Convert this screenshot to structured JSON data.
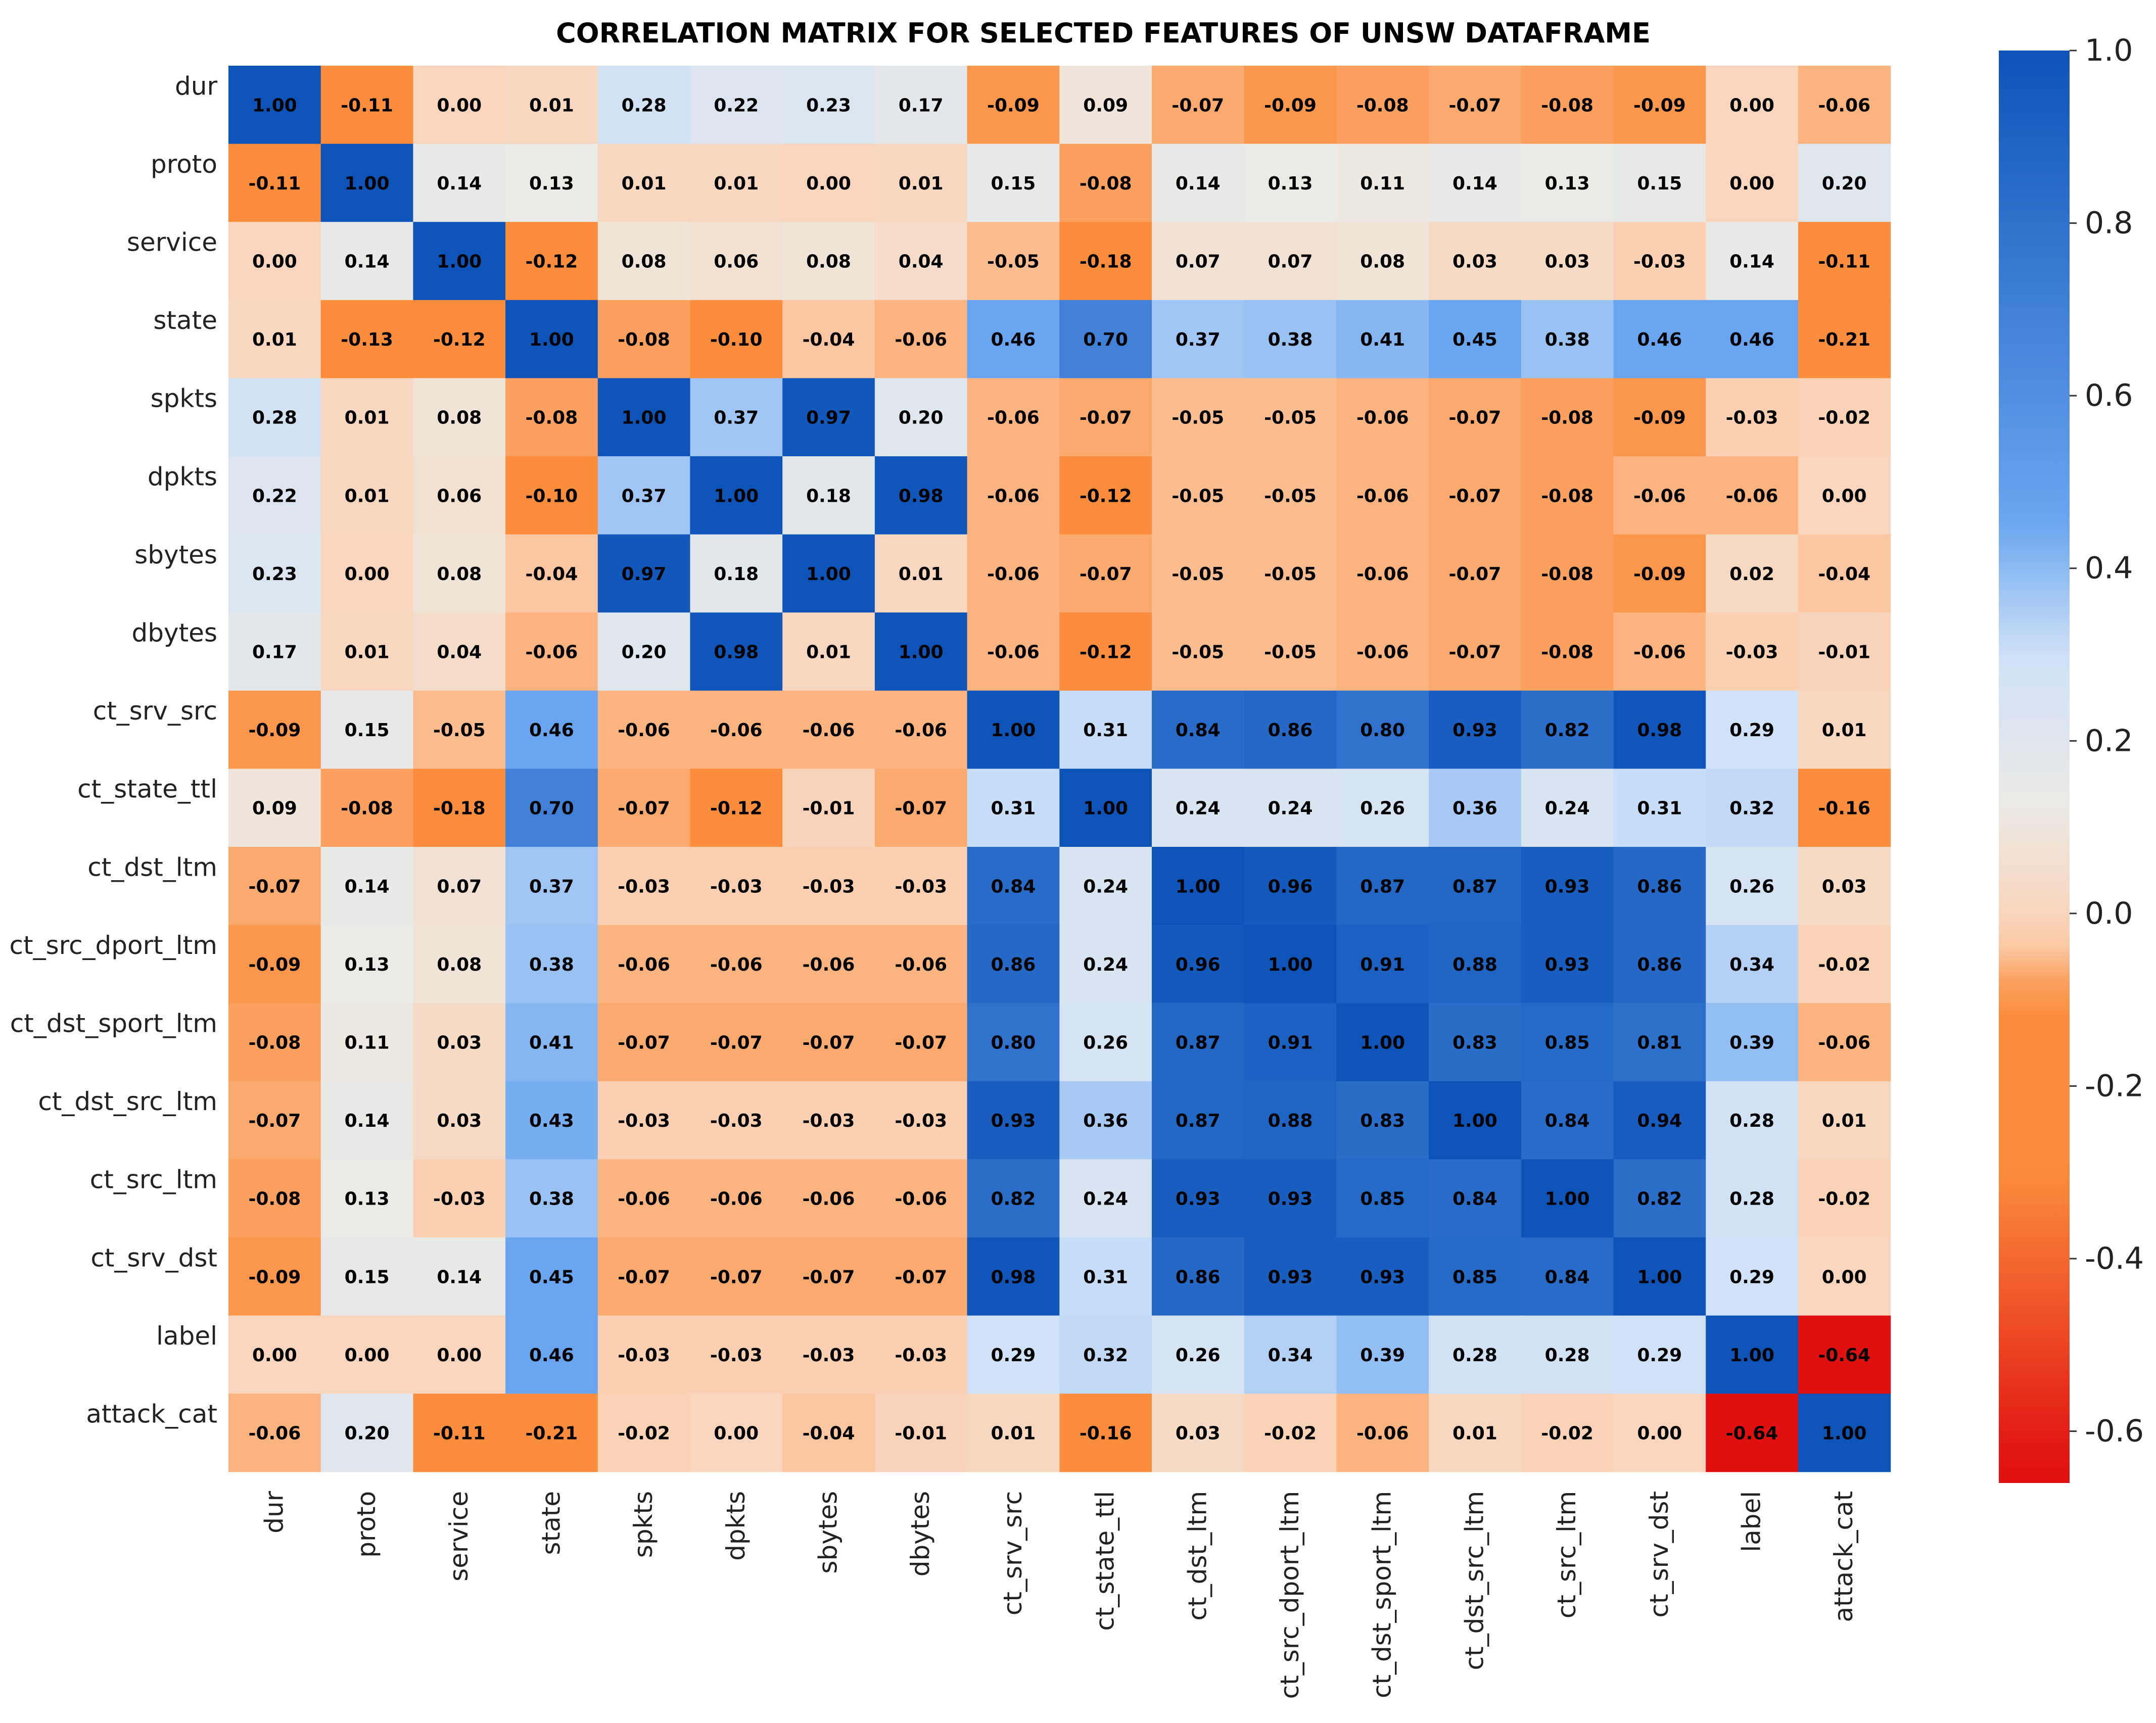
{
  "chart_data": {
    "type": "heatmap",
    "title": "CORRELATION MATRIX FOR SELECTED FEATURES OF UNSW DATAFRAME",
    "variables": [
      "dur",
      "proto",
      "service",
      "state",
      "spkts",
      "dpkts",
      "sbytes",
      "dbytes",
      "ct_srv_src",
      "ct_state_ttl",
      "ct_dst_ltm",
      "ct_src_dport_ltm",
      "ct_dst_sport_ltm",
      "ct_dst_src_ltm",
      "ct_src_ltm",
      "ct_srv_dst",
      "label",
      "attack_cat"
    ],
    "matrix": [
      [
        1.0,
        -0.11,
        -0.0,
        0.01,
        0.28,
        0.22,
        0.23,
        0.17,
        -0.09,
        0.09,
        -0.07,
        -0.09,
        -0.08,
        -0.07,
        -0.08,
        -0.09,
        -0.0,
        -0.06
      ],
      [
        -0.11,
        1.0,
        0.14,
        0.13,
        0.01,
        0.01,
        0.0,
        0.01,
        0.15,
        -0.08,
        0.14,
        0.13,
        0.11,
        0.14,
        0.13,
        0.15,
        -0.0,
        0.2
      ],
      [
        -0.0,
        0.14,
        1.0,
        -0.12,
        0.08,
        0.06,
        0.08,
        0.04,
        -0.05,
        -0.18,
        0.07,
        0.07,
        0.08,
        0.03,
        0.03,
        -0.03,
        0.14,
        -0.11
      ],
      [
        0.01,
        -0.13,
        -0.12,
        1.0,
        -0.08,
        -0.1,
        -0.04,
        -0.06,
        0.46,
        0.7,
        0.37,
        0.38,
        0.41,
        0.45,
        0.38,
        0.46,
        0.46,
        -0.21
      ],
      [
        0.28,
        0.01,
        0.08,
        -0.08,
        1.0,
        0.37,
        0.97,
        0.2,
        -0.06,
        -0.07,
        -0.05,
        -0.05,
        -0.06,
        -0.07,
        -0.08,
        -0.09,
        -0.03,
        -0.02
      ],
      [
        0.22,
        0.01,
        0.06,
        -0.1,
        0.37,
        1.0,
        0.18,
        0.98,
        -0.06,
        -0.12,
        -0.05,
        -0.05,
        -0.06,
        -0.07,
        -0.08,
        -0.06,
        -0.06,
        0.0
      ],
      [
        0.23,
        0.0,
        0.08,
        -0.04,
        0.97,
        0.18,
        1.0,
        0.01,
        -0.06,
        -0.07,
        -0.05,
        -0.05,
        -0.06,
        -0.07,
        -0.08,
        -0.09,
        0.02,
        -0.04
      ],
      [
        0.17,
        0.01,
        0.04,
        -0.06,
        0.2,
        0.98,
        0.01,
        1.0,
        -0.06,
        -0.12,
        -0.05,
        -0.05,
        -0.06,
        -0.07,
        -0.08,
        -0.06,
        -0.03,
        -0.01
      ],
      [
        -0.09,
        0.15,
        -0.05,
        0.46,
        -0.06,
        -0.06,
        -0.06,
        -0.06,
        1.0,
        0.31,
        0.84,
        0.86,
        0.8,
        0.93,
        0.82,
        0.98,
        0.29,
        0.01
      ],
      [
        0.09,
        -0.08,
        -0.18,
        0.7,
        -0.07,
        -0.12,
        -0.01,
        -0.07,
        0.31,
        1.0,
        0.24,
        0.24,
        0.26,
        0.36,
        0.24,
        0.31,
        0.32,
        -0.16
      ],
      [
        -0.07,
        0.14,
        0.07,
        0.37,
        -0.03,
        -0.03,
        -0.03,
        -0.03,
        0.84,
        0.24,
        1.0,
        0.96,
        0.87,
        0.87,
        0.93,
        0.86,
        0.26,
        0.03
      ],
      [
        -0.09,
        0.13,
        0.08,
        0.38,
        -0.06,
        -0.06,
        -0.06,
        -0.06,
        0.86,
        0.24,
        0.96,
        1.0,
        0.91,
        0.88,
        0.93,
        0.86,
        0.34,
        -0.02
      ],
      [
        -0.08,
        0.11,
        0.03,
        0.41,
        -0.07,
        -0.07,
        -0.07,
        -0.07,
        0.8,
        0.26,
        0.87,
        0.91,
        1.0,
        0.83,
        0.85,
        0.81,
        0.39,
        -0.06
      ],
      [
        -0.07,
        0.14,
        0.03,
        0.43,
        -0.03,
        -0.03,
        -0.03,
        -0.03,
        0.93,
        0.36,
        0.87,
        0.88,
        0.83,
        1.0,
        0.84,
        0.94,
        0.28,
        0.01
      ],
      [
        -0.08,
        0.13,
        -0.03,
        0.38,
        -0.06,
        -0.06,
        -0.06,
        -0.06,
        0.82,
        0.24,
        0.93,
        0.93,
        0.85,
        0.84,
        1.0,
        0.82,
        0.28,
        -0.02
      ],
      [
        -0.09,
        0.15,
        0.14,
        0.45,
        -0.07,
        -0.07,
        -0.07,
        -0.07,
        0.98,
        0.31,
        0.86,
        0.93,
        0.93,
        0.85,
        0.84,
        1.0,
        0.29,
        0.0
      ],
      [
        -0.0,
        -0.0,
        -0.0,
        0.46,
        -0.03,
        -0.03,
        -0.03,
        -0.03,
        0.29,
        0.32,
        0.26,
        0.34,
        0.39,
        0.28,
        0.28,
        0.29,
        1.0,
        -0.64
      ],
      [
        -0.06,
        0.2,
        -0.11,
        -0.21,
        -0.02,
        0.0,
        -0.04,
        -0.01,
        0.01,
        -0.16,
        0.03,
        -0.02,
        -0.06,
        0.01,
        -0.02,
        0.0,
        -0.64,
        1.0
      ]
    ],
    "colorbar": {
      "ticks": [
        "1.0",
        "0.8",
        "0.6",
        "0.4",
        "0.2",
        "0.0",
        "-0.2",
        "-0.4",
        "-0.6"
      ],
      "colors": {
        "strong_positive": "#0d53b8",
        "mid_positive": "#6aa6f0",
        "weak_positive": "#cfe1f7",
        "neutral": "#eceae5",
        "weak_negative": "#fbd0b2",
        "mid_negative": "#fb8d3c",
        "strong_negative": "#e01010"
      }
    }
  }
}
